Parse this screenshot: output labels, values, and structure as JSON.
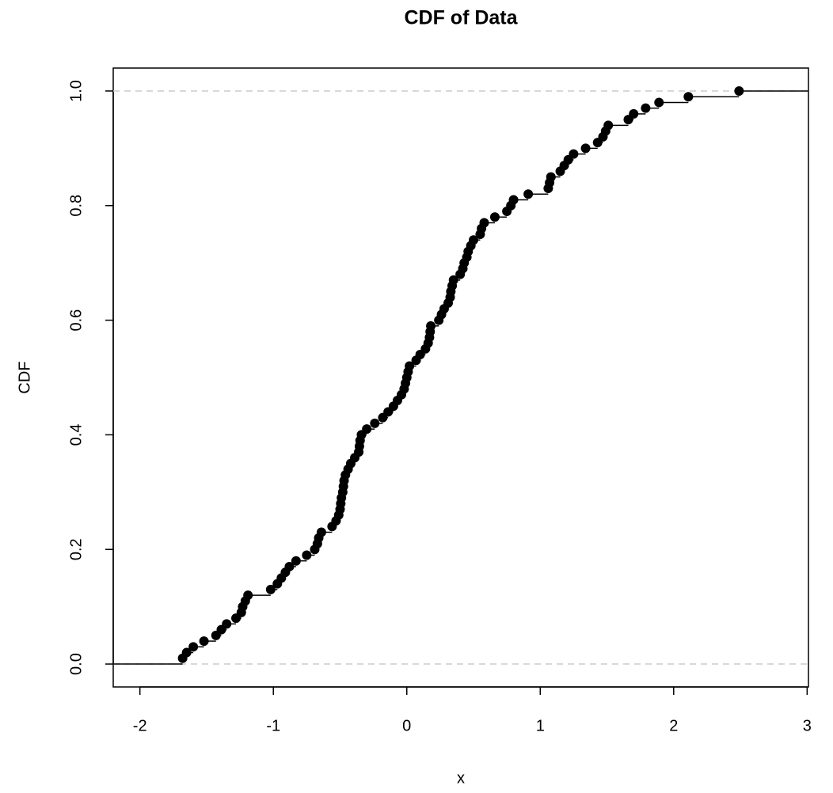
{
  "chart_data": {
    "type": "ecdf",
    "title": "CDF of Data",
    "xlabel": "x",
    "ylabel": "CDF",
    "x": [
      -1.68,
      -1.65,
      -1.6,
      -1.52,
      -1.43,
      -1.39,
      -1.35,
      -1.28,
      -1.24,
      -1.23,
      -1.21,
      -1.19,
      -1.02,
      -0.97,
      -0.94,
      -0.91,
      -0.88,
      -0.83,
      -0.75,
      -0.69,
      -0.67,
      -0.66,
      -0.64,
      -0.56,
      -0.53,
      -0.51,
      -0.5,
      -0.495,
      -0.49,
      -0.48,
      -0.475,
      -0.47,
      -0.46,
      -0.44,
      -0.42,
      -0.39,
      -0.36,
      -0.355,
      -0.35,
      -0.34,
      -0.3,
      -0.24,
      -0.18,
      -0.14,
      -0.1,
      -0.07,
      -0.04,
      -0.02,
      -0.01,
      0.0,
      0.01,
      0.02,
      0.07,
      0.1,
      0.14,
      0.16,
      0.17,
      0.175,
      0.18,
      0.24,
      0.26,
      0.28,
      0.31,
      0.325,
      0.33,
      0.34,
      0.35,
      0.4,
      0.42,
      0.43,
      0.45,
      0.46,
      0.48,
      0.5,
      0.55,
      0.56,
      0.58,
      0.66,
      0.75,
      0.78,
      0.8,
      0.91,
      1.06,
      1.07,
      1.08,
      1.15,
      1.18,
      1.21,
      1.25,
      1.34,
      1.43,
      1.47,
      1.49,
      1.51,
      1.66,
      1.7,
      1.79,
      1.89,
      2.11,
      2.49
    ],
    "y": [
      0.01,
      0.02,
      0.03,
      0.04,
      0.05,
      0.06,
      0.07,
      0.08,
      0.09,
      0.1,
      0.11,
      0.12,
      0.13,
      0.14,
      0.15,
      0.16,
      0.17,
      0.18,
      0.19,
      0.2,
      0.21,
      0.22,
      0.23,
      0.24,
      0.25,
      0.26,
      0.27,
      0.28,
      0.29,
      0.3,
      0.31,
      0.32,
      0.33,
      0.34,
      0.35,
      0.36,
      0.37,
      0.38,
      0.39,
      0.4,
      0.41,
      0.42,
      0.43,
      0.44,
      0.45,
      0.46,
      0.47,
      0.48,
      0.49,
      0.5,
      0.51,
      0.52,
      0.53,
      0.54,
      0.55,
      0.56,
      0.57,
      0.58,
      0.59,
      0.6,
      0.61,
      0.62,
      0.63,
      0.64,
      0.65,
      0.66,
      0.67,
      0.68,
      0.69,
      0.7,
      0.71,
      0.72,
      0.73,
      0.74,
      0.75,
      0.76,
      0.77,
      0.78,
      0.79,
      0.8,
      0.81,
      0.82,
      0.83,
      0.84,
      0.85,
      0.86,
      0.87,
      0.88,
      0.89,
      0.9,
      0.91,
      0.92,
      0.93,
      0.94,
      0.95,
      0.96,
      0.97,
      0.98,
      0.99,
      1.0
    ],
    "color": "#000000",
    "hlines": [
      0,
      1
    ],
    "hline_color": "#cccccc",
    "xlim": [
      -2.2,
      3.01
    ],
    "ylim": [
      -0.04,
      1.04
    ],
    "xticks": [
      -2,
      -1,
      0,
      1,
      2,
      3
    ],
    "yticks": [
      {
        "value": 0,
        "label": "0.0"
      },
      0.2,
      0.4,
      0.6,
      0.8,
      {
        "value": 1,
        "label": "1.0"
      }
    ]
  }
}
